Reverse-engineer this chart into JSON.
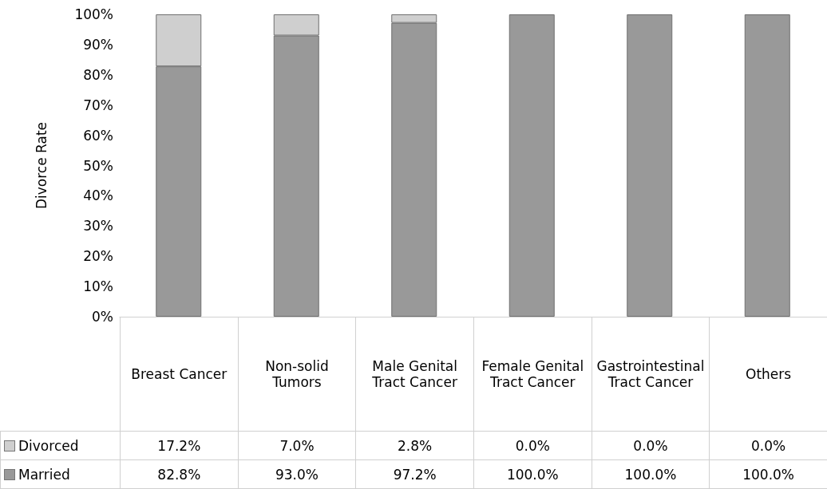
{
  "chart_data": {
    "type": "bar",
    "ylabel": "Divorce Rate",
    "stacked": true,
    "grid": false,
    "legend": "bottom left",
    "categories": [
      "Breast Cancer",
      "Non-solid Tumors",
      "Male Genital Tract Cancer",
      "Female Genital Tract Cancer",
      "Gastrointestinal Tract Cancer",
      "Others"
    ],
    "ylim": [
      0,
      100
    ],
    "yticks": [
      {
        "value": 0,
        "label": "0%"
      },
      {
        "value": 10,
        "label": "10%"
      },
      {
        "value": 20,
        "label": "20%"
      },
      {
        "value": 30,
        "label": "30%"
      },
      {
        "value": 40,
        "label": "40%"
      },
      {
        "value": 50,
        "label": "50%"
      },
      {
        "value": 60,
        "label": "60%"
      },
      {
        "value": 70,
        "label": "70%"
      },
      {
        "value": 80,
        "label": "80%"
      },
      {
        "value": 90,
        "label": "90%"
      },
      {
        "value": 100,
        "label": "100%"
      }
    ],
    "series": [
      {
        "name": "Married",
        "color": "#999999",
        "values": [
          82.8,
          93.0,
          97.2,
          100.0,
          100.0,
          100.0
        ],
        "value_labels": [
          "82.8%",
          "93.0%",
          "97.2%",
          "100.0%",
          "100.0%",
          "100.0%"
        ]
      },
      {
        "name": "Divorced",
        "color": "#cfcfcf",
        "values": [
          17.2,
          7.0,
          2.8,
          0.0,
          0.0,
          0.0
        ],
        "value_labels": [
          "17.2%",
          "7.0%",
          "2.8%",
          "0.0%",
          "0.0%",
          "0.0%"
        ]
      }
    ]
  }
}
